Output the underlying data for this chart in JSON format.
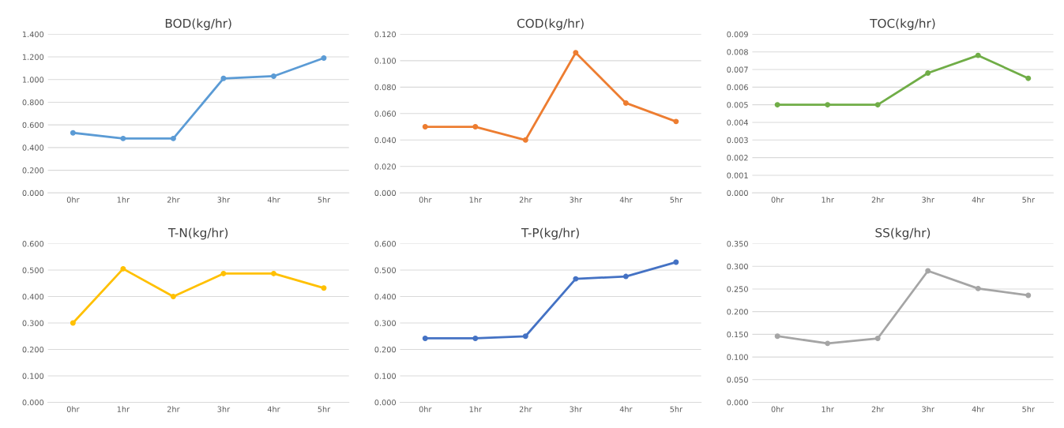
{
  "chart_data": [
    {
      "type": "line",
      "title": "BOD(kg/hr)",
      "categories": [
        "0hr",
        "1hr",
        "2hr",
        "3hr",
        "4hr",
        "5hr"
      ],
      "series": [
        {
          "color": "#5b9bd5",
          "values": [
            0.53,
            0.48,
            0.48,
            1.01,
            1.03,
            1.19
          ]
        }
      ],
      "ylim": [
        0,
        1.4
      ],
      "yticks": [
        {
          "value": 0,
          "label": "0.000"
        },
        {
          "value": 0.2,
          "label": "0.200"
        },
        {
          "value": 0.4,
          "label": "0.400"
        },
        {
          "value": 0.6,
          "label": "0.600"
        },
        {
          "value": 0.8,
          "label": "0.800"
        },
        {
          "value": 1.0,
          "label": "1.000"
        },
        {
          "value": 1.2,
          "label": "1.200"
        },
        {
          "value": 1.4,
          "label": "1.400"
        }
      ],
      "grid": "y",
      "marker": "circle",
      "line_style": "solid"
    },
    {
      "type": "line",
      "title": "COD(kg/hr)",
      "categories": [
        "0hr",
        "1hr",
        "2hr",
        "3hr",
        "4hr",
        "5hr"
      ],
      "series": [
        {
          "color": "#ed7d31",
          "values": [
            0.05,
            0.05,
            0.04,
            0.106,
            0.068,
            0.054
          ]
        }
      ],
      "ylim": [
        0,
        0.12
      ],
      "yticks": [
        {
          "value": 0,
          "label": "0.000"
        },
        {
          "value": 0.02,
          "label": "0.020"
        },
        {
          "value": 0.04,
          "label": "0.040"
        },
        {
          "value": 0.06,
          "label": "0.060"
        },
        {
          "value": 0.08,
          "label": "0.080"
        },
        {
          "value": 0.1,
          "label": "0.100"
        },
        {
          "value": 0.12,
          "label": "0.120"
        }
      ],
      "grid": "y",
      "marker": "circle",
      "line_style": "solid"
    },
    {
      "type": "line",
      "title": "TOC(kg/hr)",
      "categories": [
        "0hr",
        "1hr",
        "2hr",
        "3hr",
        "4hr",
        "5hr"
      ],
      "series": [
        {
          "color": "#70ad47",
          "values": [
            0.005,
            0.005,
            0.005,
            0.0068,
            0.0078,
            0.0065
          ]
        }
      ],
      "ylim": [
        0,
        0.009
      ],
      "yticks": [
        {
          "value": 0,
          "label": "0.000"
        },
        {
          "value": 0.001,
          "label": "0.001"
        },
        {
          "value": 0.002,
          "label": "0.002"
        },
        {
          "value": 0.003,
          "label": "0.003"
        },
        {
          "value": 0.004,
          "label": "0.004"
        },
        {
          "value": 0.005,
          "label": "0.005"
        },
        {
          "value": 0.006,
          "label": "0.006"
        },
        {
          "value": 0.007,
          "label": "0.007"
        },
        {
          "value": 0.008,
          "label": "0.008"
        },
        {
          "value": 0.009,
          "label": "0.009"
        }
      ],
      "grid": "y",
      "marker": "circle",
      "line_style": "solid"
    },
    {
      "type": "line",
      "title": "T-N(kg/hr)",
      "categories": [
        "0hr",
        "1hr",
        "2hr",
        "3hr",
        "4hr",
        "5hr"
      ],
      "series": [
        {
          "color": "#ffc000",
          "values": [
            0.3,
            0.505,
            0.4,
            0.487,
            0.487,
            0.432
          ]
        }
      ],
      "ylim": [
        0,
        0.6
      ],
      "yticks": [
        {
          "value": 0,
          "label": "0.000"
        },
        {
          "value": 0.1,
          "label": "0.100"
        },
        {
          "value": 0.2,
          "label": "0.200"
        },
        {
          "value": 0.3,
          "label": "0.300"
        },
        {
          "value": 0.4,
          "label": "0.400"
        },
        {
          "value": 0.5,
          "label": "0.500"
        },
        {
          "value": 0.6,
          "label": "0.600"
        }
      ],
      "grid": "y",
      "marker": "circle",
      "line_style": "solid"
    },
    {
      "type": "line",
      "title": "T-P(kg/hr)",
      "categories": [
        "0hr",
        "1hr",
        "2hr",
        "3hr",
        "4hr",
        "5hr"
      ],
      "series": [
        {
          "color": "#4472c4",
          "values": [
            0.242,
            0.242,
            0.25,
            0.467,
            0.476,
            0.53
          ]
        }
      ],
      "ylim": [
        0,
        0.6
      ],
      "yticks": [
        {
          "value": 0,
          "label": "0.000"
        },
        {
          "value": 0.1,
          "label": "0.100"
        },
        {
          "value": 0.2,
          "label": "0.200"
        },
        {
          "value": 0.3,
          "label": "0.300"
        },
        {
          "value": 0.4,
          "label": "0.400"
        },
        {
          "value": 0.5,
          "label": "0.500"
        },
        {
          "value": 0.6,
          "label": "0.600"
        }
      ],
      "grid": "y",
      "marker": "circle",
      "line_style": "solid"
    },
    {
      "type": "line",
      "title": "SS(kg/hr)",
      "categories": [
        "0hr",
        "1hr",
        "2hr",
        "3hr",
        "4hr",
        "5hr"
      ],
      "series": [
        {
          "color": "#a5a5a5",
          "values": [
            0.146,
            0.13,
            0.141,
            0.29,
            0.251,
            0.236
          ]
        }
      ],
      "ylim": [
        0,
        0.35
      ],
      "yticks": [
        {
          "value": 0,
          "label": "0.000"
        },
        {
          "value": 0.05,
          "label": "0.050"
        },
        {
          "value": 0.1,
          "label": "0.100"
        },
        {
          "value": 0.15,
          "label": "0.150"
        },
        {
          "value": 0.2,
          "label": "0.200"
        },
        {
          "value": 0.25,
          "label": "0.250"
        },
        {
          "value": 0.3,
          "label": "0.300"
        },
        {
          "value": 0.35,
          "label": "0.350"
        }
      ],
      "grid": "y",
      "marker": "circle",
      "line_style": "solid"
    }
  ]
}
